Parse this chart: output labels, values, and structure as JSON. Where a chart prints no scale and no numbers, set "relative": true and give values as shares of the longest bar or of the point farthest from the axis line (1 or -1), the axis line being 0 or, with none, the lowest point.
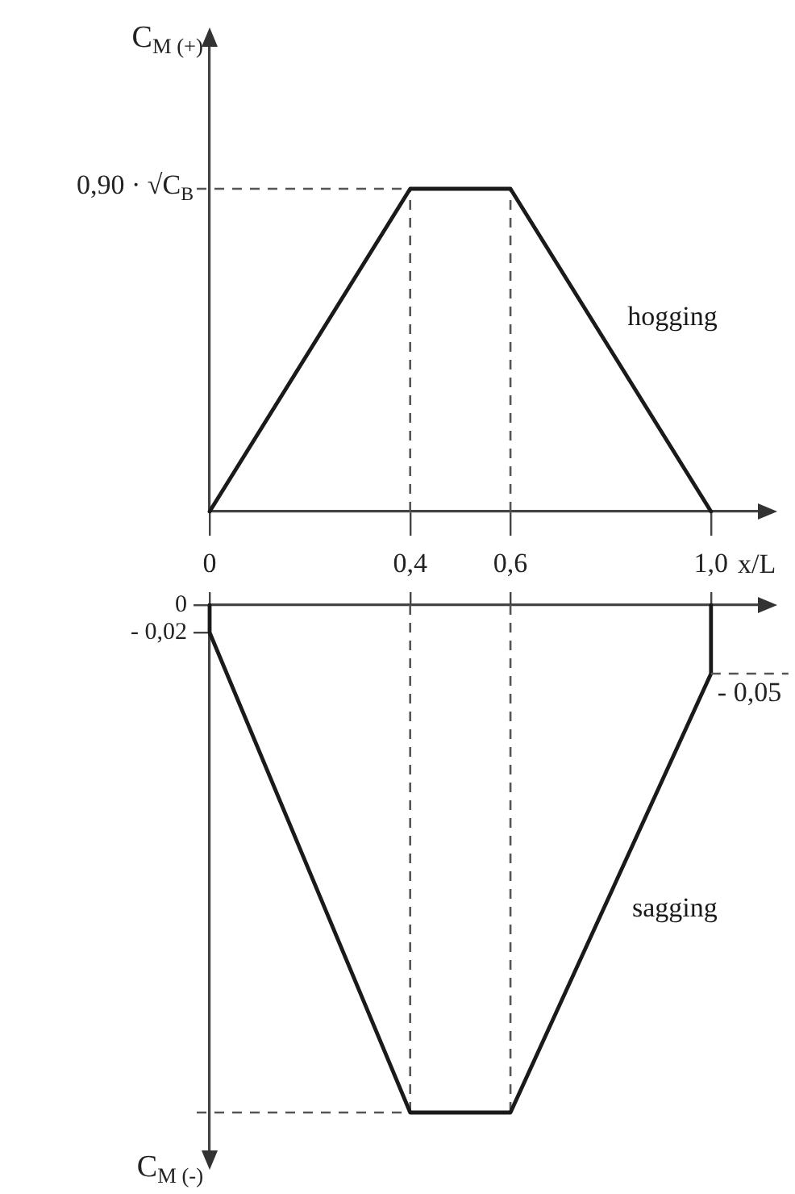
{
  "chart_data": [
    {
      "type": "line",
      "ylabel": "C$_{M (+)}$",
      "xlabel": "x/L",
      "relative": true,
      "x": [
        0,
        0.4,
        0.6,
        1.0
      ],
      "series": [
        {
          "name": "hogging",
          "color": "#1a1a1a",
          "values": [
            0,
            1,
            1,
            0
          ]
        }
      ],
      "xlim": [
        0,
        1.1
      ],
      "xticks": [
        0,
        {
          "value": 0.4,
          "label": "0,4"
        },
        {
          "value": 0.6,
          "label": "0,6"
        },
        {
          "value": 1.0,
          "label": "1,0"
        }
      ],
      "tick_labels": "x",
      "ref_lines": [
        {
          "axis": "y",
          "value": 1,
          "label": "0,90 · √C$_{B}$",
          "color": "#555555",
          "line_style": "dashed"
        },
        {
          "axis": "x",
          "value": 0.4,
          "color": "#555555",
          "line_style": "dashed"
        },
        {
          "axis": "x",
          "value": 0.6,
          "color": "#555555",
          "line_style": "dashed"
        }
      ]
    },
    {
      "type": "line",
      "ylabel": "C$_{M (-)}$",
      "x": [
        0,
        0,
        0.4,
        0.6,
        1.0,
        1.0
      ],
      "series": [
        {
          "name": "sagging",
          "color": "#1a1a1a",
          "values": [
            0,
            -0.02,
            -0.37,
            -0.37,
            -0.05,
            0
          ]
        }
      ],
      "xlim": [
        0,
        1.1
      ],
      "xticks": [
        {
          "value": 0,
          "label": null
        },
        {
          "value": 0.4,
          "label": null
        },
        {
          "value": 0.6,
          "label": null
        },
        {
          "value": 1.0,
          "label": null
        }
      ],
      "ylim": [
        -0.4,
        0
      ],
      "yticks": [
        0,
        {
          "value": -0.02,
          "label": "- 0,02"
        }
      ],
      "tick_labels": "y",
      "ref_lines": [
        {
          "axis": "x",
          "value": 0.4,
          "color": "#555555",
          "line_style": "dashed"
        },
        {
          "axis": "x",
          "value": 0.6,
          "color": "#555555",
          "line_style": "dashed"
        },
        {
          "axis": "y",
          "value": -0.37,
          "color": "#555555",
          "line_style": "dashed"
        }
      ],
      "annotations": [
        {
          "text": "- 0,05",
          "x": 1.0,
          "y": -0.05
        }
      ]
    }
  ]
}
